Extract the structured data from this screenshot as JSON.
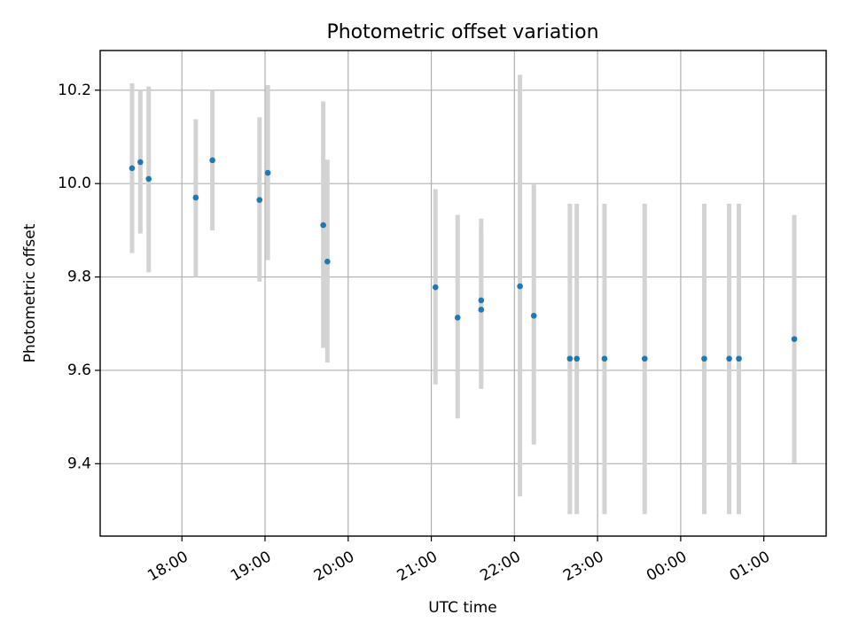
{
  "chart_data": {
    "type": "scatter",
    "title": "Photometric offset variation",
    "xlabel": "UTC time",
    "ylabel": "Photometric offset",
    "grid": true,
    "legend": "none",
    "colors": {
      "point": "#1f77b4",
      "errorbar": "#d3d3d3"
    },
    "xlim": [
      "17:01",
      "01:45"
    ],
    "ylim": [
      9.245,
      10.285
    ],
    "x_ticks": [
      "18:00",
      "19:00",
      "20:00",
      "21:00",
      "22:00",
      "23:00",
      "00:00",
      "01:00"
    ],
    "y_ticks": [
      "9.4",
      "9.6",
      "9.8",
      "10.0",
      "10.2"
    ],
    "series": [
      {
        "points": [
          {
            "x": "17:24",
            "y": 10.033,
            "lo": 9.851,
            "hi": 10.215
          },
          {
            "x": "17:30",
            "y": 10.046,
            "lo": 9.893,
            "hi": 10.2
          },
          {
            "x": "17:36",
            "y": 10.01,
            "lo": 9.81,
            "hi": 10.208
          },
          {
            "x": "18:10",
            "y": 9.97,
            "lo": 9.8,
            "hi": 10.138
          },
          {
            "x": "18:22",
            "y": 10.05,
            "lo": 9.9,
            "hi": 10.2
          },
          {
            "x": "18:56",
            "y": 9.965,
            "lo": 9.79,
            "hi": 10.142
          },
          {
            "x": "19:02",
            "y": 10.023,
            "lo": 9.836,
            "hi": 10.211
          },
          {
            "x": "19:42",
            "y": 9.911,
            "lo": 9.648,
            "hi": 10.176
          },
          {
            "x": "19:45",
            "y": 9.833,
            "lo": 9.617,
            "hi": 10.051
          },
          {
            "x": "21:03",
            "y": 9.778,
            "lo": 9.57,
            "hi": 9.988
          },
          {
            "x": "21:19",
            "y": 9.713,
            "lo": 9.497,
            "hi": 9.933
          },
          {
            "x": "21:36",
            "y": 9.75,
            "lo": 9.575,
            "hi": 9.925
          },
          {
            "x": "21:36",
            "y": 9.73,
            "lo": 9.56,
            "hi": 9.9
          },
          {
            "x": "22:04",
            "y": 9.78,
            "lo": 9.33,
            "hi": 10.233
          },
          {
            "x": "22:14",
            "y": 9.717,
            "lo": 9.441,
            "hi": 9.998
          },
          {
            "x": "22:40",
            "y": 9.625,
            "lo": 9.292,
            "hi": 9.957
          },
          {
            "x": "22:45",
            "y": 9.625,
            "lo": 9.292,
            "hi": 9.957
          },
          {
            "x": "23:05",
            "y": 9.625,
            "lo": 9.292,
            "hi": 9.957
          },
          {
            "x": "23:34",
            "y": 9.625,
            "lo": 9.292,
            "hi": 9.957
          },
          {
            "x": "00:17",
            "y": 9.625,
            "lo": 9.292,
            "hi": 9.957
          },
          {
            "x": "00:35",
            "y": 9.625,
            "lo": 9.292,
            "hi": 9.957
          },
          {
            "x": "00:42",
            "y": 9.625,
            "lo": 9.292,
            "hi": 9.957
          },
          {
            "x": "01:22",
            "y": 9.667,
            "lo": 9.401,
            "hi": 9.933
          }
        ]
      }
    ]
  }
}
